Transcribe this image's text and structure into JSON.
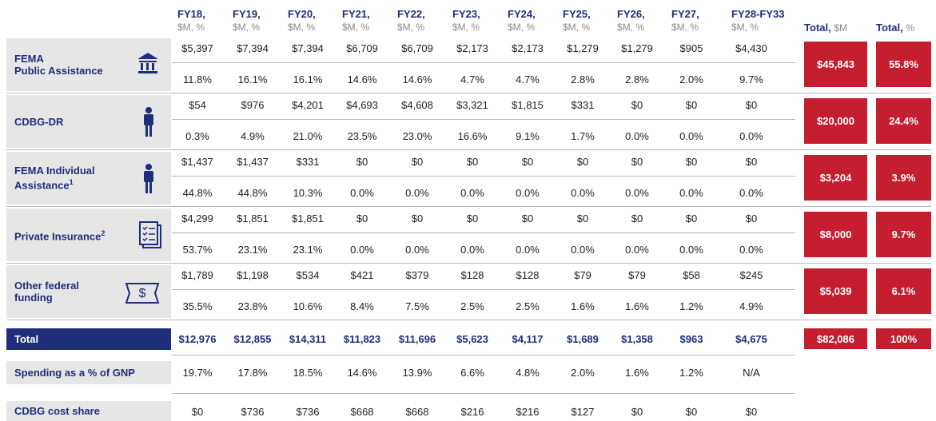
{
  "header": {
    "columns": [
      {
        "year": "FY18,",
        "unit": "$M, %"
      },
      {
        "year": "FY19,",
        "unit": "$M, %"
      },
      {
        "year": "FY20,",
        "unit": "$M, %"
      },
      {
        "year": "FY21,",
        "unit": "$M, %"
      },
      {
        "year": "FY22,",
        "unit": "$M, %"
      },
      {
        "year": "FY23,",
        "unit": "$M, %"
      },
      {
        "year": "FY24,",
        "unit": "$M, %"
      },
      {
        "year": "FY25,",
        "unit": "$M, %"
      },
      {
        "year": "FY26,",
        "unit": "$M, %"
      },
      {
        "year": "FY27,",
        "unit": "$M, %"
      },
      {
        "year": "FY28-FY33",
        "unit": "$M, %"
      }
    ],
    "totals": [
      {
        "label": "Total,",
        "unit": "$M"
      },
      {
        "label": "Total,",
        "unit": "%"
      }
    ]
  },
  "groups": [
    {
      "label": "FEMA\nPublic Assistance",
      "amounts": [
        "$5,397",
        "$7,394",
        "$7,394",
        "$6,709",
        "$6,709",
        "$2,173",
        "$2,173",
        "$1,279",
        "$1,279",
        "$905",
        "$4,430"
      ],
      "shares": [
        "11.8%",
        "16.1%",
        "16.1%",
        "14.6%",
        "14.6%",
        "4.7%",
        "4.7%",
        "2.8%",
        "2.8%",
        "2.0%",
        "9.7%"
      ],
      "total_amount": "$45,843",
      "total_share": "55.8%"
    },
    {
      "label": "CDBG-DR",
      "amounts": [
        "$54",
        "$976",
        "$4,201",
        "$4,693",
        "$4,608",
        "$3,321",
        "$1,815",
        "$331",
        "$0",
        "$0",
        "$0"
      ],
      "shares": [
        "0.3%",
        "4.9%",
        "21.0%",
        "23.5%",
        "23.0%",
        "16.6%",
        "9.1%",
        "1.7%",
        "0.0%",
        "0.0%",
        "0.0%"
      ],
      "total_amount": "$20,000",
      "total_share": "24.4%"
    },
    {
      "label": "FEMA Individual\nAssistance",
      "note": "1",
      "amounts": [
        "$1,437",
        "$1,437",
        "$331",
        "$0",
        "$0",
        "$0",
        "$0",
        "$0",
        "$0",
        "$0",
        "$0"
      ],
      "shares": [
        "44.8%",
        "44.8%",
        "10.3%",
        "0.0%",
        "0.0%",
        "0.0%",
        "0.0%",
        "0.0%",
        "0.0%",
        "0.0%",
        "0.0%"
      ],
      "total_amount": "$3,204",
      "total_share": "3.9%"
    },
    {
      "label": "Private Insurance",
      "note": "2",
      "amounts": [
        "$4,299",
        "$1,851",
        "$1,851",
        "$0",
        "$0",
        "$0",
        "$0",
        "$0",
        "$0",
        "$0",
        "$0"
      ],
      "shares": [
        "53.7%",
        "23.1%",
        "23.1%",
        "0.0%",
        "0.0%",
        "0.0%",
        "0.0%",
        "0.0%",
        "0.0%",
        "0.0%",
        "0.0%"
      ],
      "total_amount": "$8,000",
      "total_share": "9.7%"
    },
    {
      "label": "Other federal\nfunding",
      "amounts": [
        "$1,789",
        "$1,198",
        "$534",
        "$421",
        "$379",
        "$128",
        "$128",
        "$79",
        "$79",
        "$58",
        "$245"
      ],
      "shares": [
        "35.5%",
        "23.8%",
        "10.6%",
        "8.4%",
        "7.5%",
        "2.5%",
        "2.5%",
        "1.6%",
        "1.6%",
        "1.2%",
        "4.9%"
      ],
      "total_amount": "$5,039",
      "total_share": "6.1%"
    }
  ],
  "total_row": {
    "label": "Total",
    "values": [
      "$12,976",
      "$12,855",
      "$14,311",
      "$11,823",
      "$11,696",
      "$5,623",
      "$4,117",
      "$1,689",
      "$1,358",
      "$963",
      "$4,675"
    ],
    "total_amount": "$82,086",
    "total_share": "100%"
  },
  "gnp_row": {
    "label": "Spending as a % of GNP",
    "values": [
      "19.7%",
      "17.8%",
      "18.5%",
      "14.6%",
      "13.9%",
      "6.6%",
      "4.8%",
      "2.0%",
      "1.6%",
      "1.2%",
      "N/A"
    ]
  },
  "cost_share_row": {
    "label": "CDBG cost share",
    "values": [
      "$0",
      "$736",
      "$736",
      "$668",
      "$668",
      "$216",
      "$216",
      "$127",
      "$0",
      "$0",
      "$0"
    ]
  }
}
